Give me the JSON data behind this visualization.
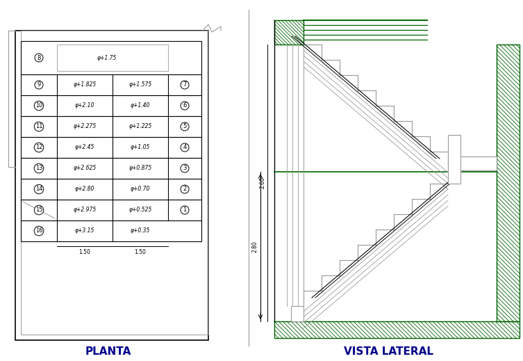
{
  "bg_color": "#ffffff",
  "title_left": "PLANTA",
  "title_right": "VISTA LATERAL",
  "title_color": "#00008B",
  "title_fontsize": 11,
  "line_color_main": "#000000",
  "line_color_gray": "#999999",
  "line_color_green": "#006400",
  "plan_rows": [
    {
      "left_num": "8",
      "mid_val": "+1.75",
      "right_val": "",
      "right_num": ""
    },
    {
      "left_num": "9",
      "mid_val": "+1.825",
      "right_val": "+1.575",
      "right_num": "7"
    },
    {
      "left_num": "10",
      "mid_val": "+2.10",
      "right_val": "+1.40",
      "right_num": "6"
    },
    {
      "left_num": "11",
      "mid_val": "+2.275",
      "right_val": "+1.225",
      "right_num": "5"
    },
    {
      "left_num": "12",
      "mid_val": "+2.45",
      "right_val": "+1.05",
      "right_num": "4"
    },
    {
      "left_num": "13",
      "mid_val": "+2.625",
      "right_val": "+0.875",
      "right_num": "3"
    },
    {
      "left_num": "14",
      "mid_val": "+2.80",
      "right_val": "+0.70",
      "right_num": "2"
    },
    {
      "left_num": "15",
      "mid_val": "+2.975",
      "right_val": "+0.525",
      "right_num": "1"
    },
    {
      "left_num": "16",
      "mid_val": "+3.15",
      "right_val": "+0.35",
      "right_num": ""
    }
  ],
  "section_dim_label": "2.80",
  "section_dim_label2": "2.60"
}
